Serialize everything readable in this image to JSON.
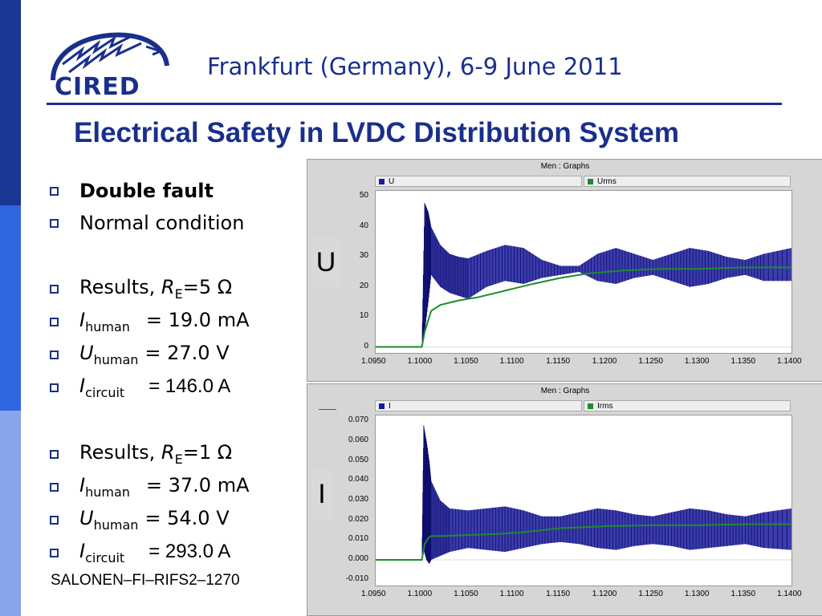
{
  "header": {
    "logo_text": "CIRED",
    "event": "Frankfurt (Germany), 6-9 June 2011"
  },
  "slide": {
    "title": "Electrical Safety in LVDC Distribution System",
    "bullets": [
      {
        "text": "Double fault",
        "bold": true
      },
      {
        "text": "Normal condition"
      },
      {
        "pre": "Results, ",
        "var": "R",
        "sub": "E",
        "post": "=5 Ω"
      },
      {
        "var": "I",
        "sub": "human",
        "post": "= 19.0 mA"
      },
      {
        "var": "U",
        "sub": "human",
        "post": "= 27.0 V"
      },
      {
        "var": "I",
        "sub": "circuit",
        "post": "= 146.0 A"
      },
      {
        "pre": "Results, ",
        "var": "R",
        "sub": "E",
        "post": "=1 Ω"
      },
      {
        "var": "I",
        "sub": "human",
        "post": "= 37.0 mA"
      },
      {
        "var": "U",
        "sub": "human",
        "post": "= 54.0 V"
      },
      {
        "var": "I",
        "sub": "circuit",
        "post": "= 293.0 A"
      }
    ],
    "reference": "SALONEN–FI–RIFS2–1270"
  },
  "colors": {
    "brand": "#1a2f8c",
    "series_main": "#1a1a9c",
    "series_rms": "#1f8a2e"
  },
  "chart_data": [
    {
      "type": "line",
      "title": "Men : Graphs",
      "side_label": "U",
      "x_ticks": [
        "1.0950",
        "1.1000",
        "1.1050",
        "1.1100",
        "1.1150",
        "1.1200",
        "1.1250",
        "1.1300",
        "1.1350",
        "1.1400"
      ],
      "y_ticks": [
        "50",
        "40",
        "30",
        "20",
        "10",
        "0"
      ],
      "xlim": [
        1.095,
        1.14
      ],
      "ylim": [
        -2,
        52
      ],
      "series": [
        {
          "name": "U",
          "x": [
            1.095,
            1.1,
            1.1003,
            1.1007,
            1.101,
            1.102,
            1.103,
            1.104,
            1.105,
            1.107,
            1.109,
            1.111,
            1.113,
            1.115,
            1.117,
            1.119,
            1.121,
            1.123,
            1.125,
            1.127,
            1.129,
            1.131,
            1.133,
            1.135,
            1.137,
            1.14
          ],
          "upper": [
            0,
            0,
            48,
            45,
            40,
            34,
            31,
            30,
            29.5,
            32,
            34,
            33,
            29,
            27,
            27,
            31,
            33,
            31,
            29,
            31,
            33,
            32,
            30,
            29,
            31,
            33
          ],
          "lower": [
            0,
            0,
            5,
            15,
            24,
            20,
            18,
            17,
            16,
            20,
            22,
            21,
            23,
            24,
            25,
            22,
            21,
            23,
            24,
            22,
            20,
            21,
            23,
            24,
            22,
            22
          ]
        },
        {
          "name": "Urms",
          "x": [
            1.095,
            1.1,
            1.1003,
            1.1007,
            1.101,
            1.102,
            1.104,
            1.106,
            1.108,
            1.11,
            1.112,
            1.115,
            1.118,
            1.122,
            1.126,
            1.13,
            1.135,
            1.14
          ],
          "values": [
            0,
            0,
            5,
            9,
            12,
            14,
            15.5,
            16.5,
            18,
            19.5,
            21,
            23,
            24.5,
            25.5,
            26,
            26,
            26.5,
            26.5
          ]
        }
      ]
    },
    {
      "type": "line",
      "title": "Men : Graphs",
      "side_label": "I",
      "x_ticks": [
        "1.0950",
        "1.1000",
        "1.1050",
        "1.1100",
        "1.1150",
        "1.1200",
        "1.1250",
        "1.1300",
        "1.1350",
        "1.1400"
      ],
      "y_ticks": [
        "0.070",
        "0.060",
        "0.050",
        "0.040",
        "0.030",
        "0.020",
        "0.010",
        "0.000",
        "-0.010"
      ],
      "xlim": [
        1.095,
        1.14
      ],
      "ylim": [
        -0.013,
        0.073
      ],
      "series": [
        {
          "name": "I",
          "x": [
            1.095,
            1.1,
            1.1002,
            1.1005,
            1.1008,
            1.101,
            1.102,
            1.103,
            1.105,
            1.107,
            1.109,
            1.111,
            1.113,
            1.115,
            1.117,
            1.119,
            1.121,
            1.123,
            1.125,
            1.127,
            1.129,
            1.131,
            1.133,
            1.135,
            1.137,
            1.14
          ],
          "upper": [
            0,
            0,
            0.068,
            0.06,
            0.05,
            0.04,
            0.03,
            0.026,
            0.025,
            0.026,
            0.027,
            0.025,
            0.022,
            0.022,
            0.024,
            0.026,
            0.025,
            0.023,
            0.022,
            0.024,
            0.026,
            0.025,
            0.023,
            0.022,
            0.024,
            0.026
          ],
          "lower": [
            0,
            0,
            0.005,
            0.0,
            -0.002,
            0.0,
            0.002,
            0.004,
            0.006,
            0.005,
            0.004,
            0.006,
            0.008,
            0.009,
            0.008,
            0.006,
            0.005,
            0.007,
            0.008,
            0.007,
            0.005,
            0.006,
            0.007,
            0.008,
            0.006,
            0.005
          ]
        },
        {
          "name": "Irms",
          "x": [
            1.095,
            1.1,
            1.1003,
            1.1007,
            1.101,
            1.102,
            1.105,
            1.108,
            1.111,
            1.115,
            1.12,
            1.125,
            1.13,
            1.135,
            1.14
          ],
          "values": [
            0,
            0,
            0.008,
            0.011,
            0.012,
            0.012,
            0.0125,
            0.013,
            0.014,
            0.016,
            0.017,
            0.0175,
            0.0175,
            0.018,
            0.018
          ]
        }
      ]
    }
  ]
}
